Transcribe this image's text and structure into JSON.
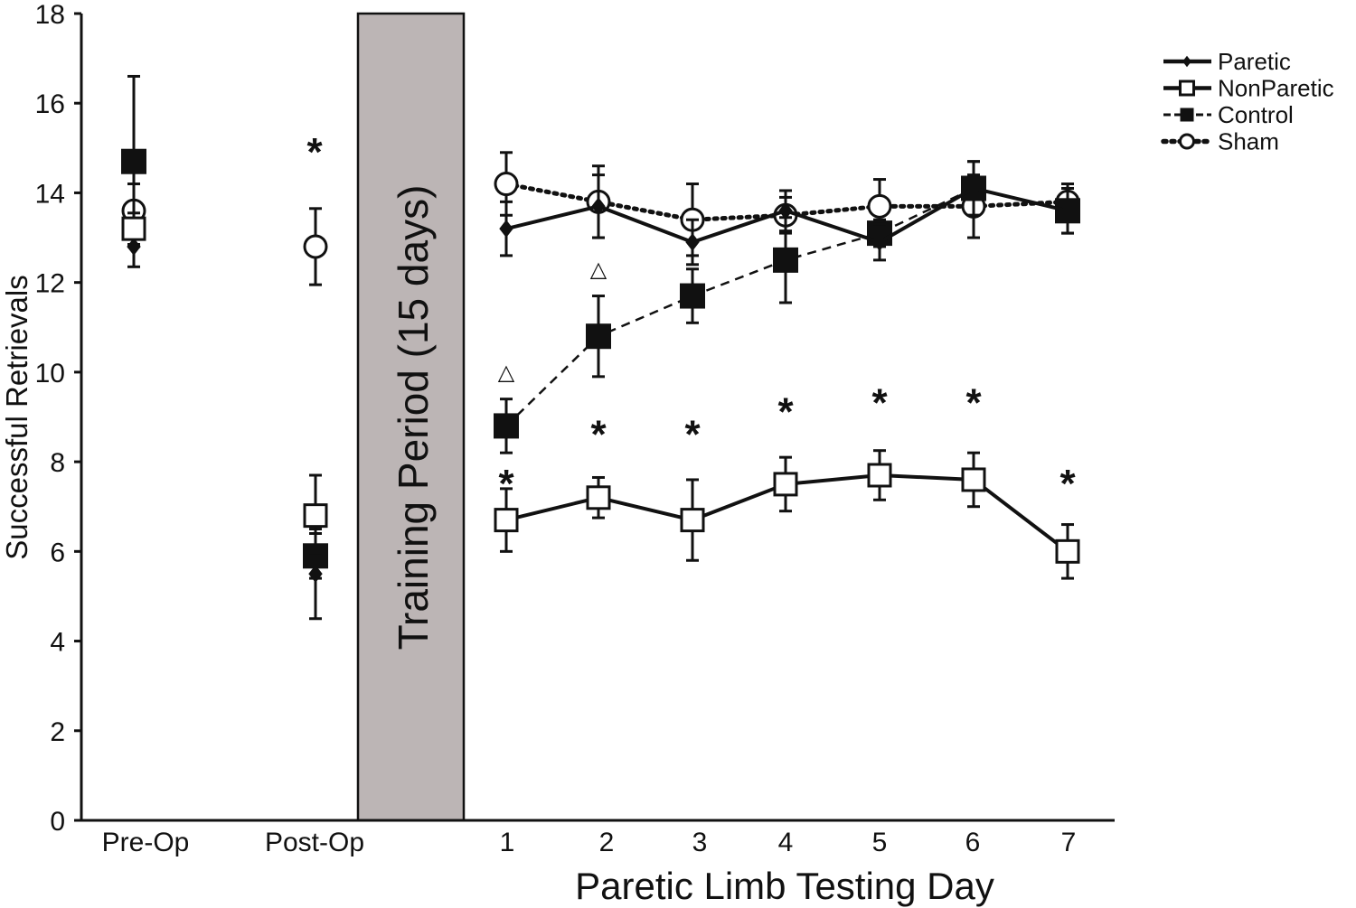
{
  "chart_data": {
    "type": "line",
    "title": "",
    "ylabel": "Successful Retrievals",
    "xlabel": "Paretic Limb Testing Day",
    "ylim": [
      0,
      18
    ],
    "y_ticks": [
      0,
      2,
      4,
      6,
      8,
      10,
      12,
      14,
      16,
      18
    ],
    "x_ticks": [
      "Pre-Op",
      "Post-Op",
      "1",
      "2",
      "3",
      "4",
      "5",
      "6",
      "7"
    ],
    "training_label": "Training Period (15 days)",
    "legend": {
      "placement": "top-right",
      "entries": [
        "Paretic",
        "NonParetic",
        "Control",
        "Sham"
      ]
    },
    "series": [
      {
        "name": "Paretic",
        "marker": "diamond",
        "line": "solid",
        "baseline": [
          {
            "x": "Pre-Op",
            "y": 12.8,
            "err": 0.45
          },
          {
            "x": "Post-Op",
            "y": 5.5,
            "err": 1.0
          }
        ],
        "days": [
          {
            "x": "1",
            "y": 13.2,
            "err": 0.6
          },
          {
            "x": "2",
            "y": 13.7,
            "err": 0.7
          },
          {
            "x": "3",
            "y": 12.9,
            "err": 0.5
          },
          {
            "x": "4",
            "y": 13.6,
            "err": 0.45
          },
          {
            "x": "5",
            "y": 12.9,
            "err": 0.4
          },
          {
            "x": "6",
            "y": 14.1,
            "err": 0.6
          },
          {
            "x": "7",
            "y": 13.6,
            "err": 0.5
          }
        ]
      },
      {
        "name": "NonParetic",
        "marker": "open-square",
        "line": "solid",
        "baseline": [
          {
            "x": "Pre-Op",
            "y": 13.2,
            "err": 0.35
          },
          {
            "x": "Post-Op",
            "y": 6.8,
            "err": 0.9
          }
        ],
        "days": [
          {
            "x": "1",
            "y": 6.7,
            "err": 0.7
          },
          {
            "x": "2",
            "y": 7.2,
            "err": 0.45
          },
          {
            "x": "3",
            "y": 6.7,
            "err": 0.9
          },
          {
            "x": "4",
            "y": 7.5,
            "err": 0.6
          },
          {
            "x": "5",
            "y": 7.7,
            "err": 0.55
          },
          {
            "x": "6",
            "y": 7.6,
            "err": 0.6
          },
          {
            "x": "7",
            "y": 6.0,
            "err": 0.6
          }
        ]
      },
      {
        "name": "Control",
        "marker": "filled-square",
        "line": "dashed",
        "baseline": [
          {
            "x": "Pre-Op",
            "y": 14.7,
            "err": 1.9
          },
          {
            "x": "Post-Op",
            "y": 5.9,
            "err": 0.5
          }
        ],
        "days": [
          {
            "x": "1",
            "y": 8.8,
            "err": 0.6
          },
          {
            "x": "2",
            "y": 10.8,
            "err": 0.9
          },
          {
            "x": "3",
            "y": 11.7,
            "err": 0.6
          },
          {
            "x": "4",
            "y": 12.5,
            "err": 0.95
          },
          {
            "x": "5",
            "y": 13.1,
            "err": 0.3
          },
          {
            "x": "6",
            "y": 14.1,
            "err": 0.6
          },
          {
            "x": "7",
            "y": 13.6,
            "err": 0.5
          }
        ]
      },
      {
        "name": "Sham",
        "marker": "open-circle",
        "line": "dotted",
        "baseline": [
          {
            "x": "Pre-Op",
            "y": 13.6,
            "err": 0.6
          },
          {
            "x": "Post-Op",
            "y": 12.8,
            "err": 0.85
          }
        ],
        "days": [
          {
            "x": "1",
            "y": 14.2,
            "err": 0.7
          },
          {
            "x": "2",
            "y": 13.8,
            "err": 0.8
          },
          {
            "x": "3",
            "y": 13.4,
            "err": 0.8
          },
          {
            "x": "4",
            "y": 13.5,
            "err": 0.4
          },
          {
            "x": "5",
            "y": 13.7,
            "err": 0.6
          },
          {
            "x": "6",
            "y": 13.7,
            "err": 0.7
          },
          {
            "x": "7",
            "y": 13.8,
            "err": 0.4
          }
        ]
      }
    ],
    "annotations": [
      {
        "text": "*",
        "x": "Post-Op",
        "y": 15.1
      },
      {
        "text": "*",
        "x": "1",
        "y": 7.7
      },
      {
        "text": "*",
        "x": "2",
        "y": 8.8
      },
      {
        "text": "*",
        "x": "3",
        "y": 8.8
      },
      {
        "text": "*",
        "x": "4",
        "y": 9.3
      },
      {
        "text": "*",
        "x": "5",
        "y": 9.5
      },
      {
        "text": "*",
        "x": "6",
        "y": 9.5
      },
      {
        "text": "*",
        "x": "7",
        "y": 7.7
      },
      {
        "text": "△",
        "x": "1",
        "y": 10.0
      },
      {
        "text": "△",
        "x": "2",
        "y": 12.3
      }
    ]
  }
}
